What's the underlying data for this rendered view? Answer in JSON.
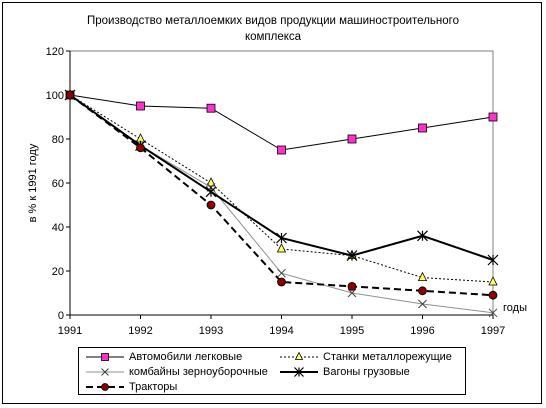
{
  "chart_data": {
    "type": "line",
    "title_lines": [
      "Производство металлоемких видов продукции машиностроительного",
      "комплекса"
    ],
    "xlabel": "годы",
    "ylabel": "в % к 1991 году",
    "x": [
      1991,
      1992,
      1993,
      1994,
      1995,
      1996,
      1997
    ],
    "x_tick_labels": [
      "1991",
      "1992",
      "1993",
      "1994",
      "1995",
      "1996",
      "1997"
    ],
    "ylim": [
      0,
      120
    ],
    "y_ticks": [
      0,
      20,
      40,
      60,
      80,
      100,
      120
    ],
    "y_tick_labels": [
      "0",
      "20",
      "40",
      "60",
      "80",
      "100",
      "120"
    ],
    "grid": false,
    "legend_position": "bottom",
    "series": [
      {
        "name": "Автомобили легковые",
        "values": [
          100,
          95,
          94,
          75,
          80,
          85,
          90
        ],
        "color": "#000000",
        "line": "solid",
        "width": 1,
        "marker": "square",
        "marker_color": "#ff33cc"
      },
      {
        "name": "Станки металлорежущие",
        "values": [
          100,
          80,
          60,
          30,
          27,
          17,
          15
        ],
        "color": "#000000",
        "line": "dotted",
        "width": 1,
        "marker": "triangle",
        "marker_color": "#ffff66"
      },
      {
        "name": "комбайны зерноуборочные",
        "values": [
          100,
          77,
          58,
          19,
          10,
          5,
          1
        ],
        "color": "#909090",
        "line": "solid",
        "width": 1,
        "marker": "x",
        "marker_color": "#404040"
      },
      {
        "name": "Вагоны грузовые",
        "values": [
          100,
          77,
          56,
          35,
          27,
          36,
          25
        ],
        "color": "#000000",
        "line": "solid",
        "width": 2,
        "marker": "star",
        "marker_color": "#000000"
      },
      {
        "name": "Тракторы",
        "values": [
          100,
          76,
          50,
          15,
          13,
          11,
          9
        ],
        "color": "#000000",
        "line": "dashed",
        "width": 2,
        "marker": "circle",
        "marker_color": "#8b0000"
      }
    ]
  }
}
